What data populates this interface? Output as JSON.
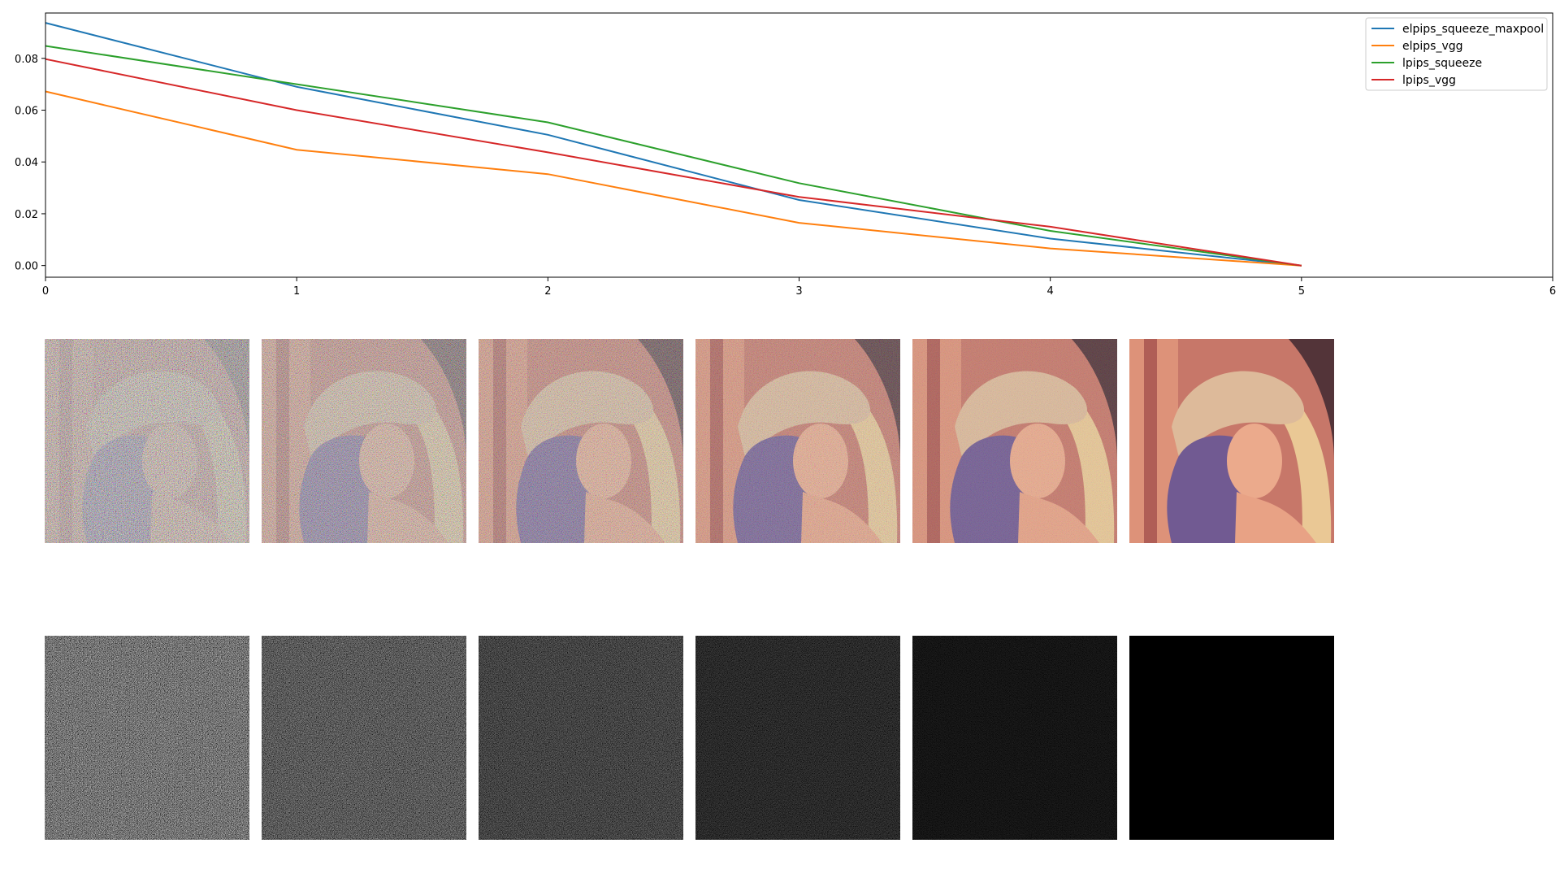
{
  "chart_data": {
    "type": "line",
    "title": "",
    "xlabel": "",
    "ylabel": "",
    "xlim": [
      0,
      6
    ],
    "ylim": [
      -0.0045,
      0.0975
    ],
    "xticks": [
      "0",
      "1",
      "2",
      "3",
      "4",
      "5",
      "6"
    ],
    "yticks": [
      "0.00",
      "0.02",
      "0.04",
      "0.06",
      "0.08"
    ],
    "grid": false,
    "legend_position": "top-right",
    "x": [
      0,
      1,
      2,
      3,
      4,
      5
    ],
    "series": [
      {
        "name": "elpips_squeeze_maxpool",
        "color": "#1f77b4",
        "values": [
          0.0937,
          0.069,
          0.0505,
          0.0253,
          0.0104,
          0.0
        ]
      },
      {
        "name": "elpips_vgg",
        "color": "#ff7f0e",
        "values": [
          0.0672,
          0.0447,
          0.0353,
          0.0165,
          0.0066,
          0.0
        ]
      },
      {
        "name": "lpips_squeeze",
        "color": "#2ca02c",
        "values": [
          0.0848,
          0.07,
          0.0553,
          0.0318,
          0.0134,
          0.0
        ]
      },
      {
        "name": "lpips_vgg",
        "color": "#d62728",
        "values": [
          0.0797,
          0.06,
          0.0437,
          0.0265,
          0.015,
          0.0
        ]
      }
    ]
  },
  "image_rows": [
    {
      "name": "noisy-image",
      "noise_levels": [
        1.0,
        0.78,
        0.58,
        0.36,
        0.18,
        0.0
      ]
    },
    {
      "name": "difference-image",
      "noise_levels": [
        1.0,
        0.78,
        0.58,
        0.36,
        0.18,
        0.0
      ]
    }
  ]
}
